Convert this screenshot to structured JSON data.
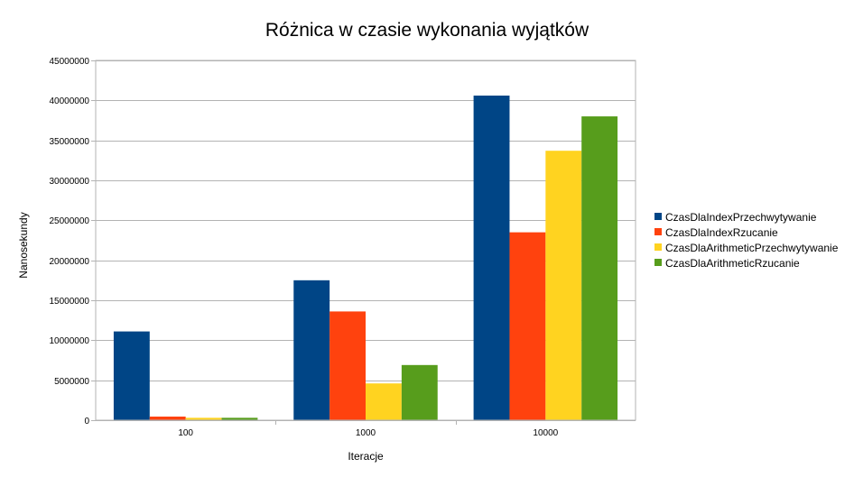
{
  "chart_data": {
    "type": "bar",
    "title": "Różnica w czasie wykonania wyjątków",
    "xlabel": "Iteracje",
    "ylabel": "Nanosekundy",
    "categories": [
      "100",
      "1000",
      "10000"
    ],
    "ylim": [
      0,
      45000000
    ],
    "yticks": [
      0,
      5000000,
      10000000,
      15000000,
      20000000,
      25000000,
      30000000,
      35000000,
      40000000,
      45000000
    ],
    "grid": true,
    "legend_position": "right",
    "series": [
      {
        "name": "CzasDlaIndexPrzechwytywanie",
        "color": "#004586",
        "values": [
          11100000,
          17500000,
          40600000
        ]
      },
      {
        "name": "CzasDlaIndexRzucanie",
        "color": "#ff420e",
        "values": [
          450000,
          13600000,
          23500000
        ]
      },
      {
        "name": "CzasDlaArithmeticPrzechwytywanie",
        "color": "#ffd320",
        "values": [
          300000,
          4600000,
          33700000
        ]
      },
      {
        "name": "CzasDlaArithmeticRzucanie",
        "color": "#579d1c",
        "values": [
          300000,
          6900000,
          38000000
        ]
      }
    ]
  }
}
